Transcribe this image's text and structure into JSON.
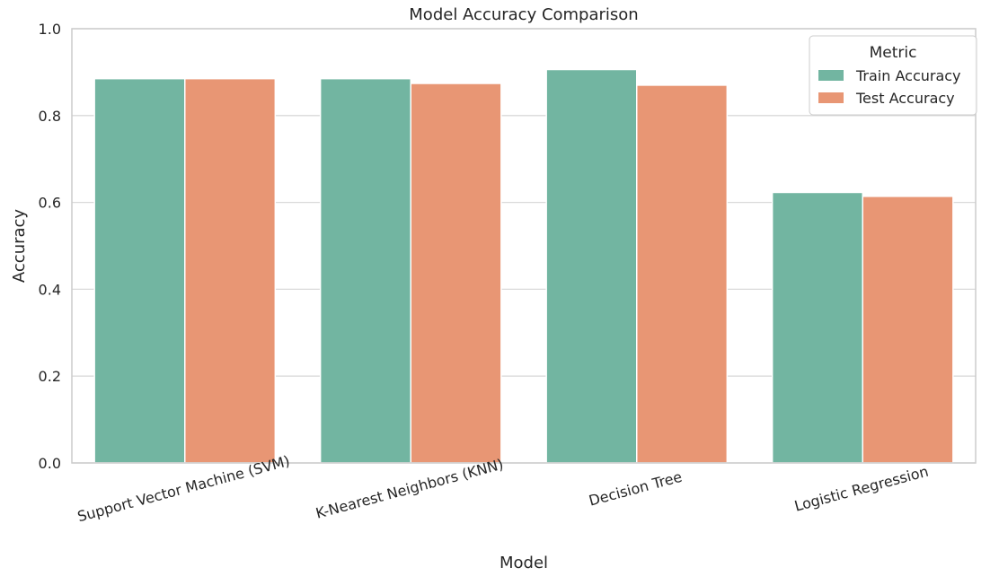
{
  "chart_data": {
    "type": "bar",
    "title": "Model Accuracy Comparison",
    "xlabel": "Model",
    "ylabel": "Accuracy",
    "ylim": [
      0,
      1.0
    ],
    "yticks": [
      "0.0",
      "0.2",
      "0.4",
      "0.6",
      "0.8",
      "1.0"
    ],
    "grid": "horizontal",
    "categories": [
      "Support Vector Machine (SVM)",
      "K-Nearest Neighbors (KNN)",
      "Decision Tree",
      "Logistic Regression"
    ],
    "legend": {
      "title": "Metric",
      "placement": "top-right"
    },
    "series": [
      {
        "name": "Train Accuracy",
        "color": "#72b5a1",
        "values": [
          0.885,
          0.885,
          0.906,
          0.623
        ]
      },
      {
        "name": "Test Accuracy",
        "color": "#e89674",
        "values": [
          0.885,
          0.874,
          0.87,
          0.614
        ]
      }
    ]
  }
}
